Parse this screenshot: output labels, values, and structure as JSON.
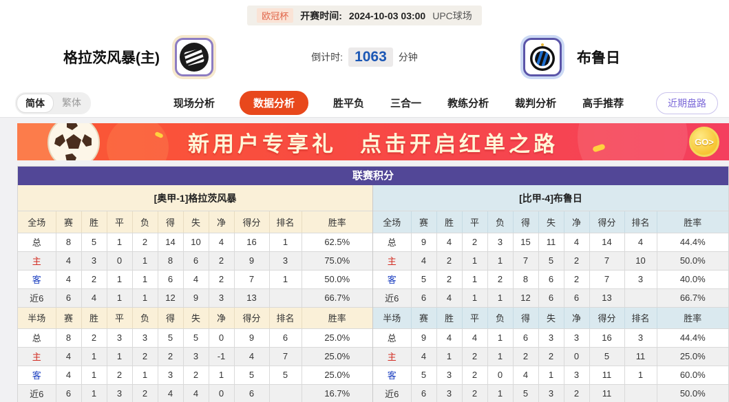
{
  "top_bar": {
    "league_tag": "欧冠杯",
    "kickoff_label": "开赛时间:",
    "kickoff_time": "2024-10-03 03:00",
    "venue": "UPC球场"
  },
  "match": {
    "home_name": "格拉茨风暴(主)",
    "away_name": "布鲁日",
    "countdown_label": "倒计时:",
    "countdown_value": "1063",
    "countdown_unit": "分钟"
  },
  "nav": {
    "lang_toggle": [
      "简体",
      "繁体"
    ],
    "tabs": [
      "现场分析",
      "数据分析",
      "胜平负",
      "三合一",
      "教练分析",
      "裁判分析",
      "高手推荐"
    ],
    "active_tab": "数据分析",
    "recent_trend_button": "近期盘路"
  },
  "banner": {
    "headline_left": "新用户专享礼",
    "headline_right": "点击开启红单之路",
    "go_label": "GO>",
    "football_icon": "soccer-ball-icon",
    "go_icon": "gold-coin-go-icon"
  },
  "league_table": {
    "title": "联赛积分",
    "columns_full": [
      "全场",
      "赛",
      "胜",
      "平",
      "负",
      "得",
      "失",
      "净",
      "得分",
      "排名",
      "胜率"
    ],
    "columns_half": [
      "半场",
      "赛",
      "胜",
      "平",
      "负",
      "得",
      "失",
      "净",
      "得分",
      "排名",
      "胜率"
    ],
    "home": {
      "header": "[奥甲-1]格拉茨风暴",
      "full_rows": [
        [
          "总",
          "8",
          "5",
          "1",
          "2",
          "14",
          "10",
          "4",
          "16",
          "1",
          "62.5%"
        ],
        [
          "主",
          "4",
          "3",
          "0",
          "1",
          "8",
          "6",
          "2",
          "9",
          "3",
          "75.0%"
        ],
        [
          "客",
          "4",
          "2",
          "1",
          "1",
          "6",
          "4",
          "2",
          "7",
          "1",
          "50.0%"
        ],
        [
          "近6",
          "6",
          "4",
          "1",
          "1",
          "12",
          "9",
          "3",
          "13",
          "",
          "66.7%"
        ]
      ],
      "half_rows": [
        [
          "总",
          "8",
          "2",
          "3",
          "3",
          "5",
          "5",
          "0",
          "9",
          "6",
          "25.0%"
        ],
        [
          "主",
          "4",
          "1",
          "1",
          "2",
          "2",
          "3",
          "-1",
          "4",
          "7",
          "25.0%"
        ],
        [
          "客",
          "4",
          "1",
          "2",
          "1",
          "3",
          "2",
          "1",
          "5",
          "5",
          "25.0%"
        ],
        [
          "近6",
          "6",
          "1",
          "3",
          "2",
          "4",
          "4",
          "0",
          "6",
          "",
          "16.7%"
        ]
      ]
    },
    "away": {
      "header": "[比甲-4]布鲁日",
      "full_rows": [
        [
          "总",
          "9",
          "4",
          "2",
          "3",
          "15",
          "11",
          "4",
          "14",
          "4",
          "44.4%"
        ],
        [
          "主",
          "4",
          "2",
          "1",
          "1",
          "7",
          "5",
          "2",
          "7",
          "10",
          "50.0%"
        ],
        [
          "客",
          "5",
          "2",
          "1",
          "2",
          "8",
          "6",
          "2",
          "7",
          "3",
          "40.0%"
        ],
        [
          "近6",
          "6",
          "4",
          "1",
          "1",
          "12",
          "6",
          "6",
          "13",
          "",
          "66.7%"
        ]
      ],
      "half_rows": [
        [
          "总",
          "9",
          "4",
          "4",
          "1",
          "6",
          "3",
          "3",
          "16",
          "3",
          "44.4%"
        ],
        [
          "主",
          "4",
          "1",
          "2",
          "1",
          "2",
          "2",
          "0",
          "5",
          "11",
          "25.0%"
        ],
        [
          "客",
          "5",
          "3",
          "2",
          "0",
          "4",
          "1",
          "3",
          "11",
          "1",
          "60.0%"
        ],
        [
          "近6",
          "6",
          "3",
          "2",
          "1",
          "5",
          "3",
          "2",
          "11",
          "",
          "50.0%"
        ]
      ]
    }
  },
  "colors": {
    "accent_orange": "#E8481C",
    "table_header_purple": "#524797",
    "home_theme_cream": "#FAF0D8",
    "away_theme_blue": "#DAE9EF",
    "home_label_red": "#D22B21",
    "away_label_blue": "#1B3FC0",
    "countdown_blue": "#1B57B5",
    "banner_gradient_start": "#FB5A33",
    "banner_gradient_end": "#F43F5E"
  }
}
